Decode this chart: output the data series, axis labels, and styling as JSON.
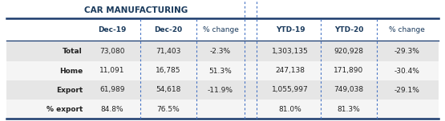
{
  "title": "CAR MANUFACTURING",
  "col_headers": [
    "Dec-19",
    "Dec-20",
    "% change",
    "YTD-19",
    "YTD-20",
    "% change"
  ],
  "col_headers_bold": [
    true,
    true,
    false,
    true,
    true,
    false
  ],
  "rows": [
    [
      "Total",
      "73,080",
      "71,403",
      "-2.3%",
      "1,303,135",
      "920,928",
      "-29.3%"
    ],
    [
      "Home",
      "11,091",
      "16,785",
      "51.3%",
      "247,138",
      "171,890",
      "-30.4%"
    ],
    [
      "Export",
      "61,989",
      "54,618",
      "-11.9%",
      "1,055,997",
      "749,038",
      "-29.1%"
    ],
    [
      "% export",
      "84.8%",
      "76.5%",
      "",
      "81.0%",
      "81.3%",
      ""
    ]
  ],
  "row_label_bold": [
    true,
    true,
    true,
    true
  ],
  "alt_row_color": "#e6e6e6",
  "white_row_color": "#f5f5f5",
  "title_color": "#1a3a5c",
  "header_text_color": "#1a3a5c",
  "body_text_color": "#222222",
  "dashed_col_color": "#4472c4",
  "solid_line_color": "#1a3a6c",
  "background_color": "#ffffff",
  "title_fontsize": 7.5,
  "header_fontsize": 6.5,
  "body_fontsize": 6.5
}
